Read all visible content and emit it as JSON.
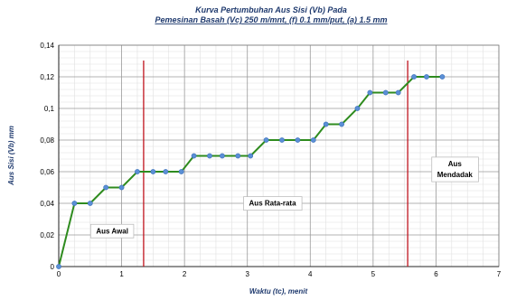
{
  "chart_data": {
    "type": "line",
    "title": "Kurva Pertumbuhan Aus Sisi (Vb) Pada",
    "subtitle": "Pemesinan Basah (Vc) 250 m/mnt, (f) 0.1 mm/put, (a) 1.5 mm",
    "xlabel": "Waktu (tc), menit",
    "ylabel": "Aus Sisi (Vb) mm",
    "xlim": [
      0,
      7
    ],
    "ylim": [
      0,
      0.14
    ],
    "xticks": [
      "0",
      "1",
      "2",
      "3",
      "4",
      "5",
      "6",
      "7"
    ],
    "yticks": [
      "0",
      "0,02",
      "0,04",
      "0,06",
      "0,08",
      "0,1",
      "0,12",
      "0,14"
    ],
    "grid": true,
    "legend": "none",
    "colors": {
      "line": "#2e8b1e",
      "marker": "#5b8fd6",
      "marker_stroke": "#3a6fb8",
      "divider": "#c0141e"
    },
    "series": [
      {
        "x": [
          0,
          0.25,
          0.5,
          0.75,
          1.0,
          1.25,
          1.5,
          1.7,
          1.95,
          2.15,
          2.4,
          2.6,
          2.85,
          3.05,
          3.3,
          3.55,
          3.8,
          4.05,
          4.25,
          4.5,
          4.75,
          4.95,
          5.2,
          5.4,
          5.65,
          5.85,
          6.1
        ],
        "y": [
          0,
          0.04,
          0.04,
          0.05,
          0.05,
          0.06,
          0.06,
          0.06,
          0.06,
          0.07,
          0.07,
          0.07,
          0.07,
          0.07,
          0.08,
          0.08,
          0.08,
          0.08,
          0.09,
          0.09,
          0.1,
          0.11,
          0.11,
          0.11,
          0.12,
          0.12,
          0.12
        ]
      }
    ],
    "dividers_x": [
      1.35,
      5.55
    ],
    "annotations": [
      {
        "text": "Aus Awal",
        "x": 0.85,
        "y": 0.021
      },
      {
        "text": "Aus Rata-rata",
        "x": 3.4,
        "y": 0.0385
      },
      {
        "text": "Aus",
        "x": 6.3,
        "y": 0.0635
      },
      {
        "text": "Mendadak",
        "x": 6.3,
        "y": 0.0565
      }
    ]
  }
}
